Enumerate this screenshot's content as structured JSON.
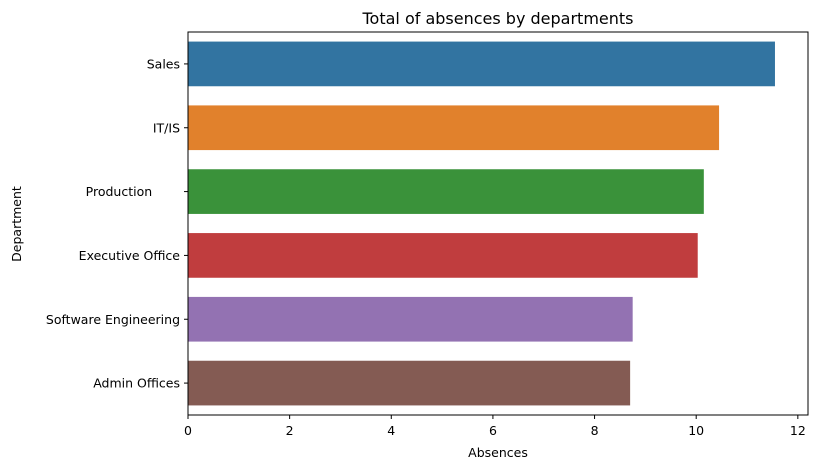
{
  "chart_data": {
    "type": "bar",
    "orientation": "horizontal",
    "title": "Total of absences by departments",
    "xlabel": "Absences",
    "ylabel": "Department",
    "xlim": [
      0,
      12.2
    ],
    "xticks": [
      0,
      2,
      4,
      6,
      8,
      10,
      12
    ],
    "grid": false,
    "legend": "none",
    "categories": [
      "Sales",
      "IT/IS",
      "Production       ",
      "Executive Office",
      "Software Engineering",
      "Admin Offices"
    ],
    "values": [
      11.55,
      10.45,
      10.15,
      10.03,
      8.75,
      8.7
    ],
    "colors": [
      "#3274a1",
      "#e1812c",
      "#3a923a",
      "#c03d3e",
      "#9372b2",
      "#845b53"
    ]
  }
}
